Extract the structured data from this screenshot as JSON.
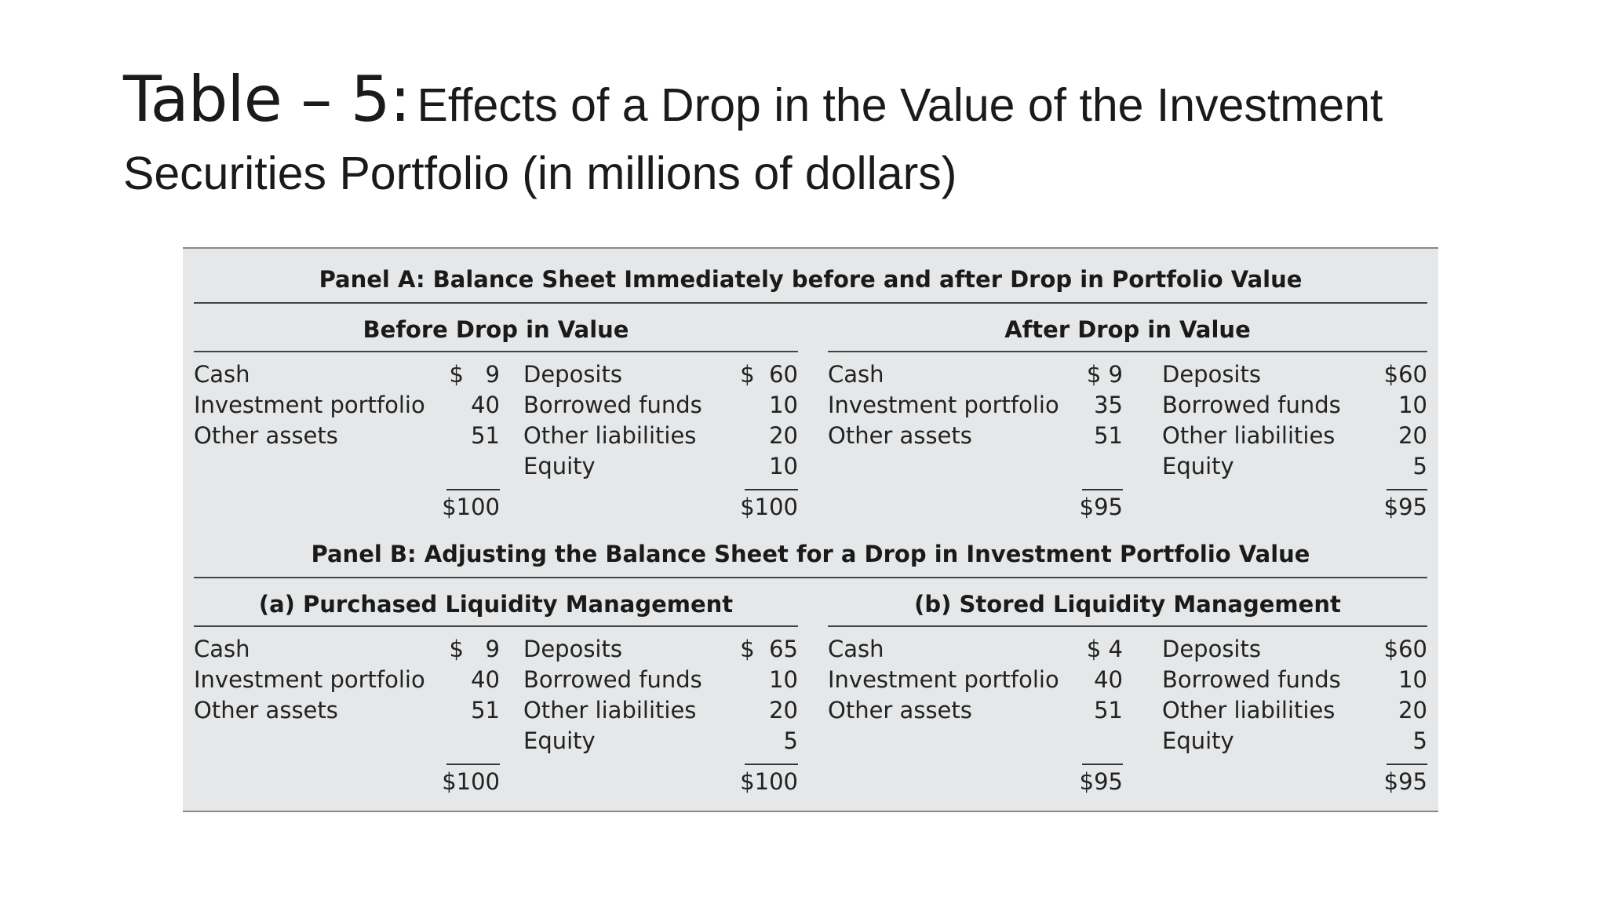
{
  "title": {
    "prefix": "Table – 5:",
    "rest": "Effects of a Drop in the Value of the Investment Securities Portfolio (in millions of dollars)"
  },
  "panel_a": {
    "title": "Panel A: Balance Sheet Immediately before and after Drop in Portfolio Value",
    "before": {
      "title": "Before Drop in Value",
      "assets": [
        {
          "label": "Cash",
          "value": "$   9"
        },
        {
          "label": "Investment portfolio",
          "value": "40"
        },
        {
          "label": "Other assets",
          "value": "51"
        }
      ],
      "liabilities": [
        {
          "label": "Deposits",
          "value": "$  60"
        },
        {
          "label": "Borrowed funds",
          "value": "10"
        },
        {
          "label": "Other liabilities",
          "value": "20"
        },
        {
          "label": "Equity",
          "value": "10"
        }
      ],
      "total_assets": "$100",
      "total_liabilities": "$100"
    },
    "after": {
      "title": "After Drop in Value",
      "assets": [
        {
          "label": "Cash",
          "value": "$ 9"
        },
        {
          "label": "Investment portfolio",
          "value": "35"
        },
        {
          "label": "Other assets",
          "value": "51"
        }
      ],
      "liabilities": [
        {
          "label": "Deposits",
          "value": "$60"
        },
        {
          "label": "Borrowed funds",
          "value": "10"
        },
        {
          "label": "Other liabilities",
          "value": "20"
        },
        {
          "label": "Equity",
          "value": "5"
        }
      ],
      "total_assets": "$95",
      "total_liabilities": "$95"
    }
  },
  "panel_b": {
    "title": "Panel B: Adjusting the Balance Sheet for a Drop in Investment Portfolio Value",
    "purchased": {
      "title": "(a) Purchased Liquidity Management",
      "assets": [
        {
          "label": "Cash",
          "value": "$   9"
        },
        {
          "label": "Investment portfolio",
          "value": "40"
        },
        {
          "label": "Other assets",
          "value": "51"
        }
      ],
      "liabilities": [
        {
          "label": "Deposits",
          "value": "$  65"
        },
        {
          "label": "Borrowed funds",
          "value": "10"
        },
        {
          "label": "Other liabilities",
          "value": "20"
        },
        {
          "label": "Equity",
          "value": "5"
        }
      ],
      "total_assets": "$100",
      "total_liabilities": "$100"
    },
    "stored": {
      "title": "(b) Stored Liquidity Management",
      "assets": [
        {
          "label": "Cash",
          "value": "$ 4"
        },
        {
          "label": "Investment portfolio",
          "value": "40"
        },
        {
          "label": "Other assets",
          "value": "51"
        }
      ],
      "liabilities": [
        {
          "label": "Deposits",
          "value": "$60"
        },
        {
          "label": "Borrowed funds",
          "value": "10"
        },
        {
          "label": "Other liabilities",
          "value": "20"
        },
        {
          "label": "Equity",
          "value": "5"
        }
      ],
      "total_assets": "$95",
      "total_liabilities": "$95"
    }
  }
}
